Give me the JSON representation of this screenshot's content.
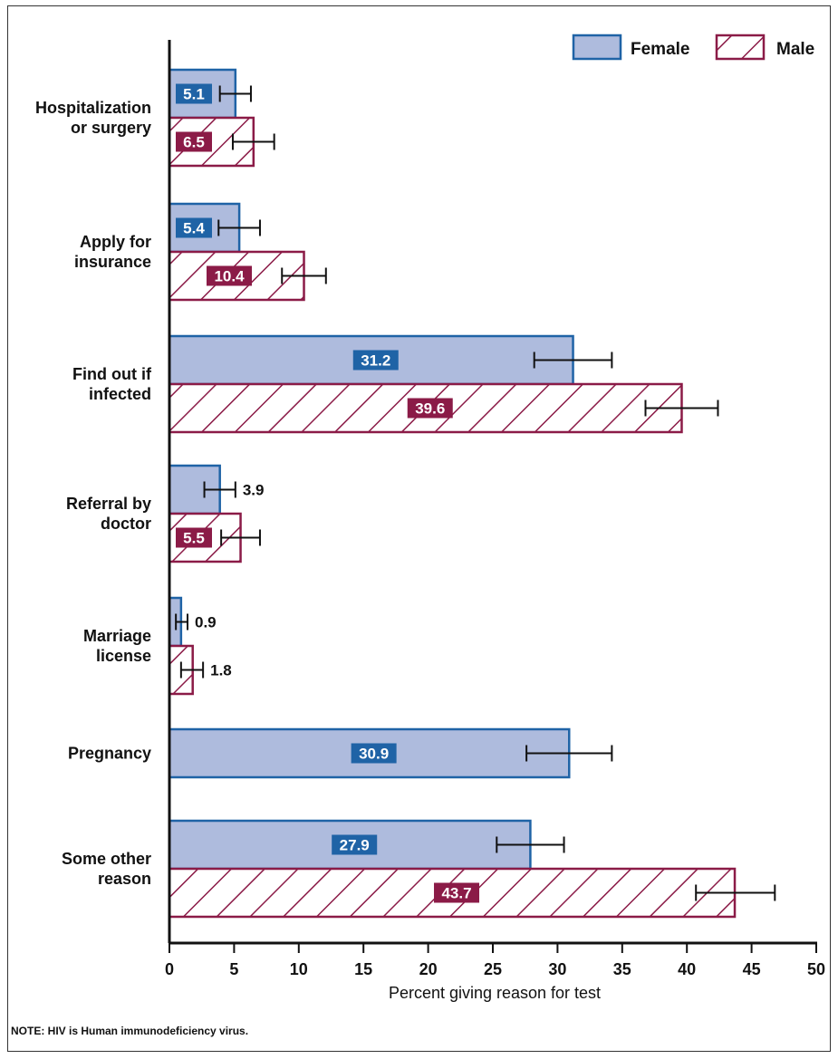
{
  "chart_data": {
    "type": "bar",
    "orientation": "horizontal",
    "categories": [
      [
        "Hospitalization",
        "or surgery"
      ],
      [
        "Apply for",
        "insurance"
      ],
      [
        "Find out if",
        "infected"
      ],
      [
        "Referral by",
        "doctor"
      ],
      [
        "Marriage",
        "license"
      ],
      [
        "Pregnancy"
      ],
      [
        "Some other",
        "reason"
      ]
    ],
    "series": [
      {
        "name": "Female",
        "values": [
          5.1,
          5.4,
          31.2,
          3.9,
          0.9,
          30.9,
          27.9
        ],
        "error": [
          [
            3.9,
            6.3
          ],
          [
            3.8,
            7.0
          ],
          [
            28.2,
            34.2
          ],
          [
            2.7,
            5.1
          ],
          [
            0.5,
            1.4
          ],
          [
            27.6,
            34.2
          ],
          [
            25.3,
            30.5
          ]
        ],
        "color": "#aebbdd",
        "border": "#1f63a6",
        "label_bg": "#1f63a6"
      },
      {
        "name": "Male",
        "values": [
          6.5,
          10.4,
          39.6,
          5.5,
          1.8,
          null,
          43.7
        ],
        "error": [
          [
            4.9,
            8.1
          ],
          [
            8.7,
            12.1
          ],
          [
            36.8,
            42.4
          ],
          [
            4.0,
            7.0
          ],
          [
            0.9,
            2.6
          ],
          null,
          [
            40.7,
            46.8
          ]
        ],
        "color": "#ffffff",
        "border": "#8b1b47",
        "label_bg": "#8b1b47",
        "pattern": "diagonal-hatch"
      }
    ],
    "xlabel": "Percent giving reason for test",
    "xlim": [
      0,
      50
    ],
    "xticks": [
      0,
      5,
      10,
      15,
      20,
      25,
      30,
      35,
      40,
      45,
      50
    ],
    "legend_position": "top-right",
    "grid": false
  },
  "note": "NOTE: HIV is Human immunodeficiency virus."
}
